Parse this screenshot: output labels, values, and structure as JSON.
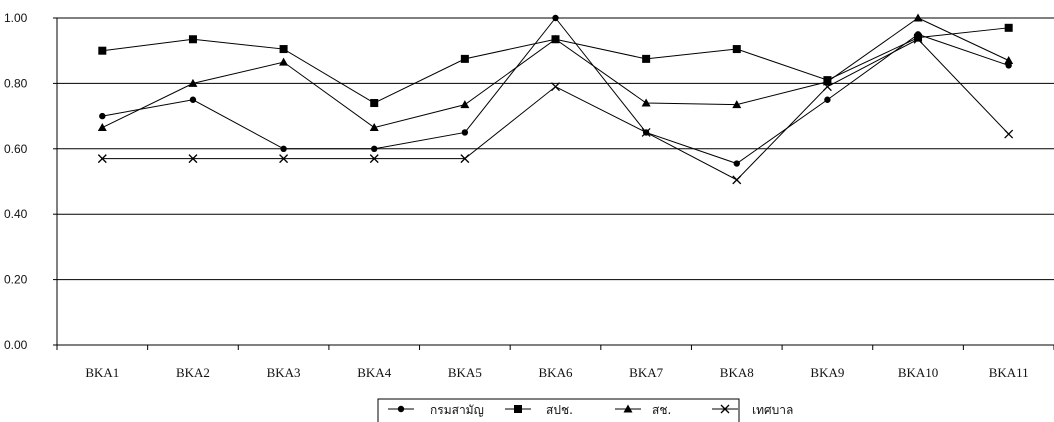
{
  "chart_data": {
    "type": "line",
    "categories": [
      "BKA1",
      "BKA2",
      "BKA3",
      "BKA4",
      "BKA5",
      "BKA6",
      "BKA7",
      "BKA8",
      "BKA9",
      "BKA10",
      "BKA11"
    ],
    "ylim": [
      0,
      1
    ],
    "yticks": [
      "0.00",
      "0.20",
      "0.40",
      "0.60",
      "0.80",
      "1.00"
    ],
    "grid": "horizontal",
    "legend_position": "bottom",
    "series": [
      {
        "name": "กรมสามัญ",
        "marker": "circle",
        "values": [
          0.7,
          0.75,
          0.6,
          0.6,
          0.65,
          1.0,
          0.65,
          0.555,
          0.75,
          0.95,
          0.855
        ]
      },
      {
        "name": "สปช.",
        "marker": "square",
        "values": [
          0.9,
          0.935,
          0.905,
          0.74,
          0.875,
          0.935,
          0.875,
          0.905,
          0.81,
          0.94,
          0.97
        ]
      },
      {
        "name": "สช.",
        "marker": "triangle",
        "values": [
          0.665,
          0.8,
          0.865,
          0.665,
          0.735,
          0.935,
          0.74,
          0.735,
          0.805,
          1.0,
          0.87
        ]
      },
      {
        "name": "เทศบาล",
        "marker": "x",
        "values": [
          0.57,
          0.57,
          0.57,
          0.57,
          0.57,
          0.79,
          0.65,
          0.505,
          0.79,
          0.935,
          0.645
        ]
      }
    ]
  }
}
